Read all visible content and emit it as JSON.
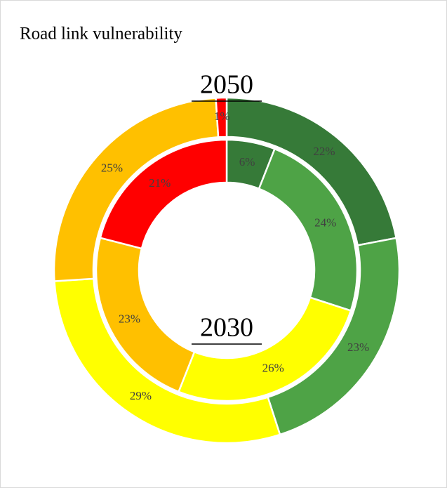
{
  "chart_data": {
    "type": "donut",
    "title": "Road link vulnerability",
    "colors": [
      "#367a38",
      "#4ea346",
      "#ffff00",
      "#ffc000",
      "#ff0000"
    ],
    "series": [
      {
        "name": "2050",
        "values": [
          22,
          23,
          29,
          25,
          1
        ],
        "value_labels": [
          "22%",
          "23%",
          "29%",
          "25%",
          "1%"
        ]
      },
      {
        "name": "2030",
        "values": [
          6,
          24,
          26,
          23,
          21
        ],
        "value_labels": [
          "6%",
          "24%",
          "26%",
          "23%",
          "21%"
        ]
      }
    ]
  }
}
